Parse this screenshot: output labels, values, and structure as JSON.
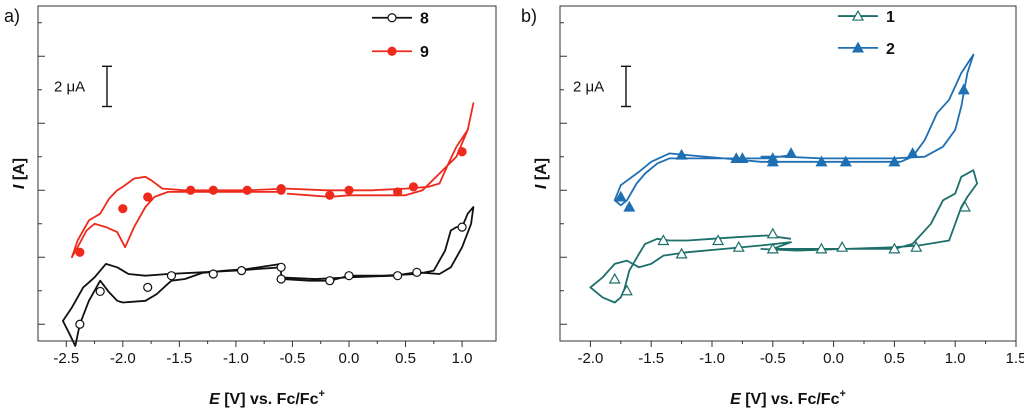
{
  "chart_data": [
    {
      "panel_label": "a)",
      "type": "line",
      "xlabel_var": "E",
      "xlabel_rest": " [V] vs. Fc/Fc",
      "xlabel_sup": "+",
      "ylabel_var": "I",
      "ylabel_rest": " [A]",
      "xlim": [
        -2.75,
        1.3
      ],
      "ylim": [
        0,
        10
      ],
      "xticks": [
        -2.5,
        -2.0,
        -1.5,
        -1.0,
        -0.5,
        0.0,
        0.5,
        1.0
      ],
      "xtick_labels": [
        "-2.5",
        "-2.0",
        "-1.5",
        "-1.0",
        "-0.5",
        "0.0",
        "0.5",
        "1.0"
      ],
      "scale_bar": {
        "label": "2 μA",
        "value_uA": 2,
        "span_y": 1.0
      },
      "legend": {
        "position": "top-right"
      },
      "series": [
        {
          "name": "8",
          "color": "#111111",
          "marker": "circle-open",
          "path": [
            [
              -0.6,
              2.3
            ],
            [
              -0.9,
              2.15
            ],
            [
              -1.1,
              2.1
            ],
            [
              -1.3,
              2.03
            ],
            [
              -1.45,
              1.85
            ],
            [
              -1.57,
              1.8
            ],
            [
              -1.62,
              1.65
            ],
            [
              -1.7,
              1.4
            ],
            [
              -1.8,
              1.2
            ],
            [
              -2.0,
              1.15
            ],
            [
              -2.05,
              1.2
            ],
            [
              -2.12,
              1.45
            ],
            [
              -2.2,
              1.8
            ],
            [
              -2.3,
              1.2
            ],
            [
              -2.38,
              0.5
            ],
            [
              -2.42,
              -0.15
            ],
            [
              -2.47,
              0.2
            ],
            [
              -2.53,
              0.6
            ],
            [
              -2.45,
              1.0
            ],
            [
              -2.35,
              1.6
            ],
            [
              -2.25,
              1.9
            ],
            [
              -2.15,
              2.3
            ],
            [
              -2.05,
              2.2
            ],
            [
              -1.95,
              2.0
            ],
            [
              -1.8,
              1.95
            ],
            [
              -1.6,
              2.0
            ],
            [
              -1.3,
              2.05
            ],
            [
              -1.0,
              2.1
            ],
            [
              -0.6,
              2.2
            ],
            [
              -0.6,
              1.85
            ],
            [
              -0.35,
              1.8
            ],
            [
              -0.17,
              1.8
            ],
            [
              0.0,
              1.95
            ],
            [
              0.3,
              1.95
            ],
            [
              0.6,
              2.0
            ],
            [
              0.75,
              2.1
            ],
            [
              0.85,
              2.7
            ],
            [
              0.9,
              3.3
            ],
            [
              0.95,
              3.4
            ],
            [
              1.0,
              3.4
            ],
            [
              1.05,
              3.8
            ],
            [
              1.1,
              4.0
            ],
            [
              1.08,
              3.5
            ],
            [
              1.0,
              2.8
            ],
            [
              0.9,
              2.2
            ],
            [
              0.8,
              2.0
            ],
            [
              0.6,
              2.05
            ],
            [
              0.4,
              1.95
            ],
            [
              0.0,
              1.9
            ],
            [
              -0.3,
              1.85
            ],
            [
              -0.6,
              1.9
            ]
          ],
          "points": [
            [
              -0.6,
              2.2
            ],
            [
              -0.6,
              1.85
            ],
            [
              -0.17,
              1.8
            ],
            [
              0.0,
              1.95
            ],
            [
              0.43,
              1.95
            ],
            [
              0.6,
              2.05
            ],
            [
              1.0,
              3.4
            ],
            [
              -0.95,
              2.1
            ],
            [
              -1.2,
              2.0
            ],
            [
              -1.57,
              1.95
            ],
            [
              -1.78,
              1.6
            ],
            [
              -2.2,
              1.48
            ],
            [
              -2.38,
              0.5
            ]
          ],
          "legend_swatch_y": 9.65
        },
        {
          "name": "9",
          "color": "#ee2a1d",
          "marker": "circle-filled",
          "path": [
            [
              -0.55,
              4.4
            ],
            [
              -0.35,
              4.35
            ],
            [
              -0.17,
              4.3
            ],
            [
              0.0,
              4.35
            ],
            [
              0.3,
              4.35
            ],
            [
              0.5,
              4.35
            ],
            [
              0.65,
              4.5
            ],
            [
              0.8,
              5.0
            ],
            [
              0.95,
              5.5
            ],
            [
              1.05,
              6.3
            ],
            [
              1.1,
              7.1
            ],
            [
              1.05,
              6.3
            ],
            [
              0.95,
              5.8
            ],
            [
              0.88,
              5.3
            ],
            [
              0.8,
              4.7
            ],
            [
              0.7,
              4.6
            ],
            [
              0.5,
              4.55
            ],
            [
              0.2,
              4.5
            ],
            [
              -0.2,
              4.5
            ],
            [
              -0.55,
              4.55
            ],
            [
              -0.9,
              4.5
            ],
            [
              -1.2,
              4.5
            ],
            [
              -1.45,
              4.5
            ],
            [
              -1.65,
              4.55
            ],
            [
              -1.75,
              4.8
            ],
            [
              -1.8,
              4.9
            ],
            [
              -1.9,
              4.85
            ],
            [
              -2.0,
              4.6
            ],
            [
              -2.05,
              4.5
            ],
            [
              -2.12,
              4.25
            ],
            [
              -2.2,
              3.8
            ],
            [
              -2.3,
              3.6
            ],
            [
              -2.4,
              3.0
            ],
            [
              -2.45,
              2.5
            ],
            [
              -2.4,
              2.8
            ],
            [
              -2.32,
              3.3
            ],
            [
              -2.25,
              3.5
            ],
            [
              -2.15,
              3.4
            ],
            [
              -2.05,
              3.25
            ],
            [
              -1.98,
              2.8
            ],
            [
              -1.9,
              3.4
            ],
            [
              -1.8,
              4.0
            ],
            [
              -1.72,
              4.3
            ],
            [
              -1.6,
              4.45
            ],
            [
              -1.4,
              4.45
            ],
            [
              -1.1,
              4.45
            ],
            [
              -0.8,
              4.45
            ],
            [
              -0.6,
              4.45
            ]
          ],
          "points": [
            [
              -1.4,
              4.5
            ],
            [
              -1.2,
              4.5
            ],
            [
              -0.9,
              4.5
            ],
            [
              -0.6,
              4.5
            ],
            [
              -0.6,
              4.55
            ],
            [
              -0.17,
              4.35
            ],
            [
              0.0,
              4.5
            ],
            [
              0.43,
              4.45
            ],
            [
              0.57,
              4.6
            ],
            [
              1.0,
              5.65
            ],
            [
              -1.78,
              4.3
            ],
            [
              -2.0,
              3.95
            ],
            [
              -2.38,
              2.65
            ]
          ],
          "legend_swatch_y": 8.65
        }
      ]
    },
    {
      "panel_label": "b)",
      "type": "line",
      "xlabel_var": "E",
      "xlabel_rest": " [V] vs. Fc/Fc",
      "xlabel_sup": "+",
      "ylabel_var": "I",
      "ylabel_rest": " [A]",
      "xlim": [
        -2.25,
        1.5
      ],
      "ylim": [
        0,
        10
      ],
      "xticks": [
        -2.0,
        -1.5,
        -1.0,
        -0.5,
        0.0,
        0.5,
        1.0,
        1.5
      ],
      "xtick_labels": [
        "-2.0",
        "-1.5",
        "-1.0",
        "-0.5",
        "0.0",
        "0.5",
        "1.0",
        "1.5"
      ],
      "scale_bar": {
        "label": "2 μA",
        "value_uA": 2,
        "span_y": 1.0
      },
      "legend": {
        "position": "top-right"
      },
      "series": [
        {
          "name": "1",
          "color": "#1d6f6a",
          "marker": "triangle-open",
          "path": [
            [
              -0.35,
              3.05
            ],
            [
              -0.55,
              3.15
            ],
            [
              -0.8,
              3.1
            ],
            [
              -1.0,
              3.05
            ],
            [
              -1.2,
              3.0
            ],
            [
              -1.35,
              3.0
            ],
            [
              -1.45,
              3.05
            ],
            [
              -1.55,
              2.9
            ],
            [
              -1.6,
              2.6
            ],
            [
              -1.68,
              2.1
            ],
            [
              -1.72,
              1.55
            ],
            [
              -1.75,
              1.3
            ],
            [
              -1.8,
              1.15
            ],
            [
              -1.9,
              1.3
            ],
            [
              -2.0,
              1.6
            ],
            [
              -1.9,
              1.9
            ],
            [
              -1.8,
              2.3
            ],
            [
              -1.7,
              2.4
            ],
            [
              -1.6,
              2.2
            ],
            [
              -1.5,
              2.3
            ],
            [
              -1.4,
              2.55
            ],
            [
              -1.2,
              2.65
            ],
            [
              -0.9,
              2.75
            ],
            [
              -0.6,
              2.85
            ],
            [
              -0.35,
              2.95
            ],
            [
              -0.5,
              2.75
            ],
            [
              -0.2,
              2.75
            ],
            [
              0.0,
              2.75
            ],
            [
              0.3,
              2.75
            ],
            [
              0.5,
              2.75
            ],
            [
              0.65,
              2.9
            ],
            [
              0.8,
              3.5
            ],
            [
              0.9,
              4.2
            ],
            [
              1.0,
              4.4
            ],
            [
              1.05,
              4.9
            ],
            [
              1.15,
              5.1
            ],
            [
              1.18,
              4.7
            ],
            [
              1.1,
              4.3
            ],
            [
              1.05,
              4.0
            ],
            [
              1.0,
              3.5
            ],
            [
              0.95,
              3.0
            ],
            [
              0.7,
              2.85
            ],
            [
              0.5,
              2.8
            ],
            [
              0.1,
              2.75
            ],
            [
              -0.3,
              2.7
            ],
            [
              -0.6,
              2.75
            ]
          ],
          "points": [
            [
              -1.4,
              3.0
            ],
            [
              -0.95,
              3.0
            ],
            [
              -0.78,
              2.8
            ],
            [
              -0.5,
              3.2
            ],
            [
              -0.5,
              2.75
            ],
            [
              -0.1,
              2.75
            ],
            [
              0.07,
              2.8
            ],
            [
              0.5,
              2.75
            ],
            [
              0.68,
              2.8
            ],
            [
              1.08,
              4.0
            ],
            [
              -1.25,
              2.6
            ],
            [
              -1.8,
              1.85
            ],
            [
              -1.7,
              1.5
            ]
          ],
          "legend_swatch_y": 9.7
        },
        {
          "name": "2",
          "color": "#1f6fb3",
          "marker": "triangle-filled",
          "path": [
            [
              -0.35,
              5.55
            ],
            [
              -0.55,
              5.45
            ],
            [
              -0.8,
              5.45
            ],
            [
              -1.0,
              5.45
            ],
            [
              -1.2,
              5.45
            ],
            [
              -1.35,
              5.45
            ],
            [
              -1.45,
              5.3
            ],
            [
              -1.55,
              5.0
            ],
            [
              -1.62,
              4.7
            ],
            [
              -1.7,
              4.2
            ],
            [
              -1.75,
              4.05
            ],
            [
              -1.8,
              4.2
            ],
            [
              -1.75,
              4.65
            ],
            [
              -1.6,
              5.05
            ],
            [
              -1.5,
              5.35
            ],
            [
              -1.35,
              5.6
            ],
            [
              -1.2,
              5.55
            ],
            [
              -0.9,
              5.45
            ],
            [
              -0.6,
              5.35
            ],
            [
              -0.35,
              5.35
            ],
            [
              -0.1,
              5.35
            ],
            [
              0.1,
              5.35
            ],
            [
              0.3,
              5.35
            ],
            [
              0.55,
              5.35
            ],
            [
              0.65,
              5.5
            ],
            [
              0.75,
              6.0
            ],
            [
              0.85,
              6.8
            ],
            [
              0.95,
              7.2
            ],
            [
              1.05,
              8.0
            ],
            [
              1.15,
              8.55
            ],
            [
              1.1,
              8.0
            ],
            [
              1.05,
              7.0
            ],
            [
              1.0,
              6.3
            ],
            [
              0.9,
              5.8
            ],
            [
              0.75,
              5.5
            ],
            [
              0.5,
              5.45
            ],
            [
              0.2,
              5.45
            ],
            [
              -0.1,
              5.45
            ],
            [
              -0.4,
              5.5
            ],
            [
              -0.6,
              5.5
            ]
          ],
          "points": [
            [
              -1.25,
              5.55
            ],
            [
              -0.8,
              5.45
            ],
            [
              -0.75,
              5.45
            ],
            [
              -0.5,
              5.35
            ],
            [
              -0.5,
              5.45
            ],
            [
              -0.35,
              5.6
            ],
            [
              -0.1,
              5.35
            ],
            [
              0.1,
              5.35
            ],
            [
              0.5,
              5.35
            ],
            [
              0.65,
              5.6
            ],
            [
              1.07,
              7.5
            ],
            [
              -1.75,
              4.3
            ],
            [
              -1.68,
              4.0
            ]
          ],
          "legend_swatch_y": 8.75
        }
      ]
    }
  ]
}
